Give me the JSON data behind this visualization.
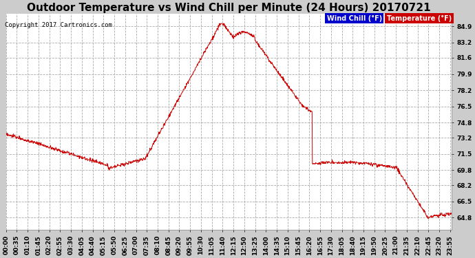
{
  "title": "Outdoor Temperature vs Wind Chill per Minute (24 Hours) 20170721",
  "copyright": "Copyright 2017 Cartronics.com",
  "yticks": [
    64.8,
    66.5,
    68.2,
    69.8,
    71.5,
    73.2,
    74.8,
    76.5,
    78.2,
    79.9,
    81.6,
    83.2,
    84.9
  ],
  "ylim": [
    63.5,
    86.2
  ],
  "bg_color": "#cccccc",
  "plot_bg_color": "#ffffff",
  "line_color": "#cc0000",
  "legend_wind_label": "Wind Chill (°F)",
  "legend_temp_label": "Temperature (°F)",
  "legend_wind_bg": "#0000cc",
  "legend_temp_bg": "#cc0000",
  "title_fontsize": 11,
  "tick_fontsize": 6.5,
  "xtick_labels": [
    "00:00",
    "00:35",
    "01:10",
    "01:45",
    "02:20",
    "02:55",
    "03:30",
    "04:05",
    "04:40",
    "05:15",
    "05:50",
    "06:25",
    "07:00",
    "07:35",
    "08:10",
    "08:45",
    "09:20",
    "09:55",
    "10:30",
    "11:05",
    "11:40",
    "12:15",
    "12:50",
    "13:25",
    "14:00",
    "14:35",
    "15:10",
    "15:45",
    "16:20",
    "16:55",
    "17:30",
    "18:05",
    "18:40",
    "19:15",
    "19:50",
    "20:25",
    "21:00",
    "21:35",
    "22:10",
    "22:45",
    "23:20",
    "23:55"
  ]
}
